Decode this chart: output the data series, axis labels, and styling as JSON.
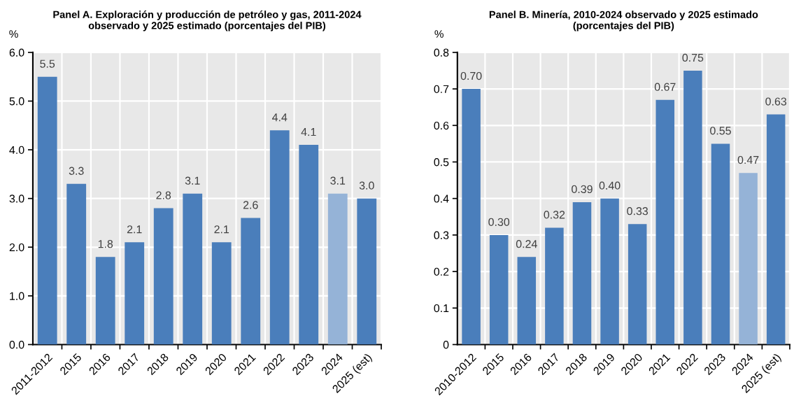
{
  "chart_data": [
    {
      "type": "bar",
      "title": "Panel A. Exploración y producción de petróleo y gas, 2011-2024\nobservado y 2025 estimado (porcentajes del PIB)",
      "ylabel": "%",
      "categories": [
        "2011-2012",
        "2015",
        "2016",
        "2017",
        "2018",
        "2019",
        "2020",
        "2021",
        "2022",
        "2023",
        "2024",
        "2025 (est)"
      ],
      "values": [
        5.5,
        3.3,
        1.8,
        2.1,
        2.8,
        3.1,
        2.1,
        2.6,
        4.4,
        4.1,
        3.1,
        3.0
      ],
      "colors": [
        "#4a7ebb",
        "#4a7ebb",
        "#4a7ebb",
        "#4a7ebb",
        "#4a7ebb",
        "#4a7ebb",
        "#4a7ebb",
        "#4a7ebb",
        "#4a7ebb",
        "#4a7ebb",
        "#95b3d7",
        "#4a7ebb"
      ],
      "value_labels": [
        "5.5",
        "3.3",
        "1.8",
        "2.1",
        "2.8",
        "3.1",
        "2.1",
        "2.6",
        "4.4",
        "4.1",
        "3.1",
        "3.0"
      ],
      "ylim": [
        0,
        6
      ],
      "yticks": [
        {
          "value": 0,
          "label": "0.0"
        },
        {
          "value": 1,
          "label": "1.0"
        },
        {
          "value": 2,
          "label": "2.0"
        },
        {
          "value": 3,
          "label": "3.0"
        },
        {
          "value": 4,
          "label": "4.0"
        },
        {
          "value": 5,
          "label": "5.0"
        },
        {
          "value": 6,
          "label": "6.0"
        }
      ],
      "grid": true
    },
    {
      "type": "bar",
      "title": "Panel B. Minería, 2010-2024 observado y 2025 estimado\n(porcentajes del PIB)",
      "ylabel": "%",
      "categories": [
        "2010-2012",
        "2015",
        "2016",
        "2017",
        "2018",
        "2019",
        "2020",
        "2021",
        "2022",
        "2023",
        "2024",
        "2025 (est)"
      ],
      "values": [
        0.7,
        0.3,
        0.24,
        0.32,
        0.39,
        0.4,
        0.33,
        0.67,
        0.75,
        0.55,
        0.47,
        0.63
      ],
      "colors": [
        "#4a7ebb",
        "#4a7ebb",
        "#4a7ebb",
        "#4a7ebb",
        "#4a7ebb",
        "#4a7ebb",
        "#4a7ebb",
        "#4a7ebb",
        "#4a7ebb",
        "#4a7ebb",
        "#95b3d7",
        "#4a7ebb"
      ],
      "value_labels": [
        "0.70",
        "0.30",
        "0.24",
        "0.32",
        "0.39",
        "0.40",
        "0.33",
        "0.67",
        "0.75",
        "0.55",
        "0.47",
        "0.63"
      ],
      "ylim": [
        0,
        0.8
      ],
      "yticks": [
        0,
        0.1,
        0.2,
        0.3,
        0.4,
        0.5,
        0.6,
        0.7,
        0.8
      ],
      "grid": true
    }
  ]
}
